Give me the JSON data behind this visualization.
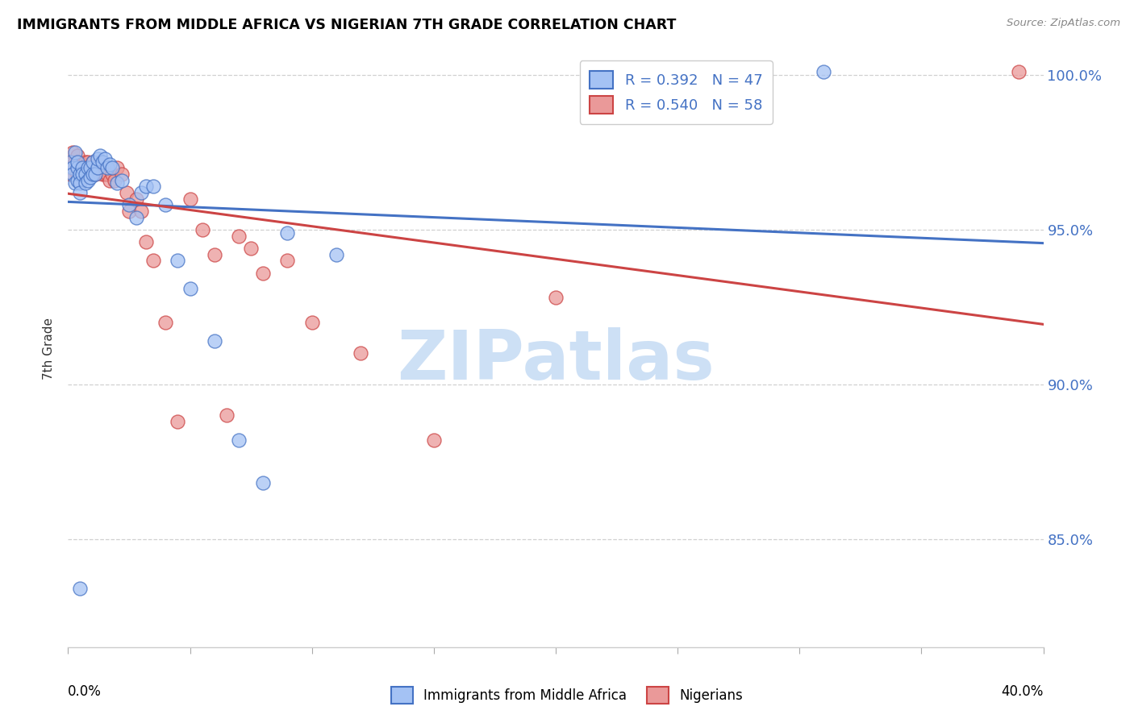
{
  "title": "IMMIGRANTS FROM MIDDLE AFRICA VS NIGERIAN 7TH GRADE CORRELATION CHART",
  "source": "Source: ZipAtlas.com",
  "ylabel": "7th Grade",
  "xlim": [
    0.0,
    0.4
  ],
  "ylim": [
    0.815,
    1.008
  ],
  "blue_R": 0.392,
  "blue_N": 47,
  "pink_R": 0.54,
  "pink_N": 58,
  "blue_color": "#a4c2f4",
  "pink_color": "#ea9999",
  "trendline_blue": "#4472c4",
  "trendline_pink": "#cc4444",
  "legend_label_blue": "Immigrants from Middle Africa",
  "legend_label_pink": "Nigerians",
  "blue_x": [
    0.001,
    0.002,
    0.002,
    0.003,
    0.003,
    0.004,
    0.004,
    0.004,
    0.005,
    0.005,
    0.005,
    0.006,
    0.006,
    0.007,
    0.007,
    0.008,
    0.008,
    0.009,
    0.009,
    0.01,
    0.01,
    0.011,
    0.012,
    0.012,
    0.013,
    0.014,
    0.015,
    0.016,
    0.017,
    0.018,
    0.02,
    0.022,
    0.025,
    0.028,
    0.03,
    0.032,
    0.035,
    0.04,
    0.045,
    0.05,
    0.06,
    0.07,
    0.08,
    0.09,
    0.11,
    0.31,
    0.005
  ],
  "blue_y": [
    0.972,
    0.97,
    0.968,
    0.975,
    0.965,
    0.97,
    0.966,
    0.972,
    0.968,
    0.965,
    0.962,
    0.97,
    0.968,
    0.968,
    0.965,
    0.97,
    0.966,
    0.97,
    0.967,
    0.972,
    0.968,
    0.968,
    0.97,
    0.973,
    0.974,
    0.972,
    0.973,
    0.97,
    0.971,
    0.97,
    0.965,
    0.966,
    0.958,
    0.954,
    0.962,
    0.964,
    0.964,
    0.958,
    0.94,
    0.931,
    0.914,
    0.882,
    0.868,
    0.949,
    0.942,
    1.001,
    0.834
  ],
  "pink_x": [
    0.001,
    0.001,
    0.002,
    0.002,
    0.003,
    0.003,
    0.004,
    0.004,
    0.004,
    0.005,
    0.005,
    0.005,
    0.006,
    0.006,
    0.006,
    0.007,
    0.007,
    0.007,
    0.008,
    0.008,
    0.009,
    0.009,
    0.01,
    0.01,
    0.011,
    0.011,
    0.012,
    0.013,
    0.013,
    0.014,
    0.015,
    0.016,
    0.017,
    0.018,
    0.019,
    0.02,
    0.022,
    0.024,
    0.025,
    0.028,
    0.03,
    0.032,
    0.035,
    0.04,
    0.045,
    0.05,
    0.055,
    0.06,
    0.065,
    0.07,
    0.075,
    0.08,
    0.09,
    0.1,
    0.12,
    0.15,
    0.2,
    0.39
  ],
  "pink_y": [
    0.97,
    0.968,
    0.975,
    0.972,
    0.972,
    0.97,
    0.974,
    0.97,
    0.968,
    0.97,
    0.968,
    0.966,
    0.971,
    0.97,
    0.968,
    0.972,
    0.97,
    0.968,
    0.972,
    0.97,
    0.97,
    0.968,
    0.972,
    0.97,
    0.97,
    0.968,
    0.97,
    0.97,
    0.972,
    0.968,
    0.968,
    0.968,
    0.966,
    0.968,
    0.966,
    0.97,
    0.968,
    0.962,
    0.956,
    0.96,
    0.956,
    0.946,
    0.94,
    0.92,
    0.888,
    0.96,
    0.95,
    0.942,
    0.89,
    0.948,
    0.944,
    0.936,
    0.94,
    0.92,
    0.91,
    0.882,
    0.928,
    1.001
  ],
  "ytick_vals": [
    0.85,
    0.9,
    0.95,
    1.0
  ],
  "ytick_labels": [
    "85.0%",
    "90.0%",
    "95.0%",
    "100.0%"
  ],
  "watermark_text": "ZIPatlas",
  "watermark_color": "#cde0f5",
  "grid_color": "#d0d0d0",
  "background_color": "#ffffff"
}
